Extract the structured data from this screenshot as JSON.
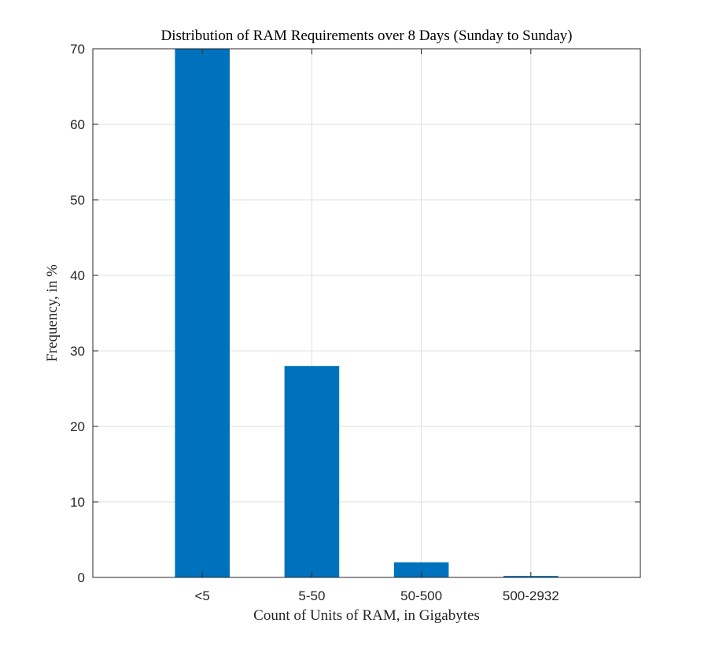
{
  "chart_data": {
    "type": "bar",
    "title": "Distribution of RAM Requirements over 8 Days (Sunday to Sunday)",
    "xlabel": "Count of Units of RAM, in Gigabytes",
    "ylabel": "Frequency, in %",
    "categories": [
      "<5",
      "5-50",
      "50-500",
      "500-2932"
    ],
    "values": [
      70,
      28,
      2,
      0.2
    ],
    "ylim": [
      0,
      70
    ],
    "yticks": [
      0,
      10,
      20,
      30,
      40,
      50,
      60,
      70
    ],
    "grid": true,
    "bar_color": "#0072BD",
    "grid_color": "#dfdfdf",
    "axis_color": "#262626"
  }
}
